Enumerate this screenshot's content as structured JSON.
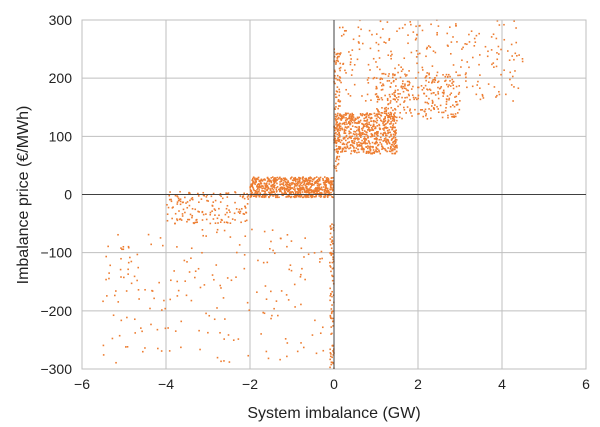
{
  "chart_data": {
    "type": "scatter",
    "title": "",
    "xlabel": "System imbalance (GW)",
    "ylabel": "Imbalance price (€/MWh)",
    "xlim": [
      -6,
      6
    ],
    "ylim": [
      -300,
      300
    ],
    "xticks": [
      -6,
      -4,
      -2,
      0,
      2,
      4,
      6
    ],
    "yticks": [
      -300,
      -200,
      -100,
      0,
      100,
      200,
      300
    ],
    "xtick_labels": [
      "−6",
      "−4",
      "−2",
      "0",
      "2",
      "4",
      "6"
    ],
    "ytick_labels": [
      "−300",
      "−200",
      "−100",
      "0",
      "100",
      "200",
      "300"
    ],
    "grid": true,
    "marker_color": "#ED7D31",
    "clusters": [
      {
        "x": [
          -2.0,
          0.0
        ],
        "y": [
          -5,
          30
        ],
        "points": 750
      },
      {
        "x": [
          -4.0,
          -2.0
        ],
        "y": [
          -50,
          5
        ],
        "points": 160
      },
      {
        "x": [
          -5.5,
          -0.2
        ],
        "y": [
          -290,
          -60
        ],
        "points": 200
      },
      {
        "x": [
          -0.1,
          0.0
        ],
        "y": [
          -300,
          -50
        ],
        "points": 90
      },
      {
        "x": [
          0.0,
          1.5
        ],
        "y": [
          70,
          140
        ],
        "points": 650
      },
      {
        "x": [
          1.0,
          3.0
        ],
        "y": [
          130,
          210
        ],
        "points": 260
      },
      {
        "x": [
          0.0,
          4.5
        ],
        "y": [
          160,
          300
        ],
        "points": 260
      },
      {
        "x": [
          0.0,
          0.15
        ],
        "y": [
          40,
          250
        ],
        "points": 90
      }
    ]
  }
}
